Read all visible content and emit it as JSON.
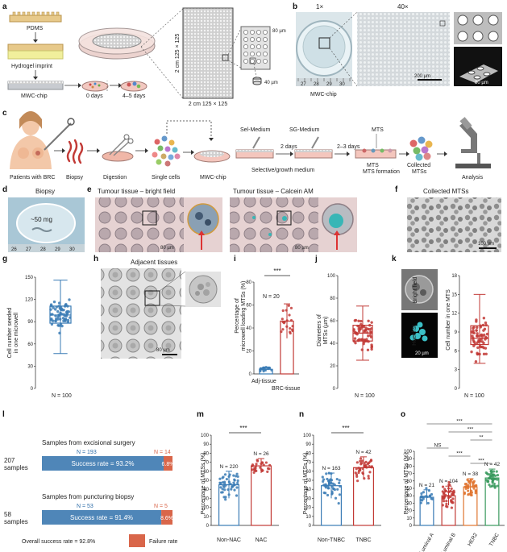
{
  "figure_type": "multi-panel scientific figure",
  "colors": {
    "blue": "#3a7bb5",
    "red": "#c23a36",
    "orange": "#e0742f",
    "green": "#3a9a5e",
    "success_bar": "#4f86b8",
    "failure_bar": "#d9664a",
    "teal": "#38b6b6"
  },
  "panels": {
    "a": {
      "label": "a",
      "pdms": "PDMS",
      "imprint": "Hydrogel imprint",
      "chip": "MWC-chip",
      "day0": "0 days",
      "day45": "4–5 days",
      "grid_side": "2 cm 125 × 125",
      "grid_bottom": "2 cm 125 × 125",
      "dim80": "80 µm",
      "dim40": "40 µm"
    },
    "b": {
      "label": "b",
      "mag1": "1×",
      "mag40": "40×",
      "caption": "MWC-chip",
      "ruler": [
        "27",
        "28",
        "29",
        "30"
      ],
      "scale1": "200 µm",
      "scale2": "80 µm"
    },
    "c": {
      "label": "c",
      "patients": "Patients with BRC",
      "steps": [
        "Biopsy",
        "Digestion",
        "Single cells",
        "MWC-chip",
        "Selective/growth medium",
        "MTS formation",
        "Collected MTSs",
        "Analysis"
      ],
      "sel_medium": "Sel-Medium",
      "sg_medium": "SG-Medium",
      "days2": "2 days",
      "days23": "2–3 days",
      "mts": "MTS"
    },
    "d": {
      "label": "d",
      "title": "Biopsy",
      "mass": "~50 mg",
      "ruler": [
        "26",
        "27",
        "28",
        "29",
        "30"
      ]
    },
    "e": {
      "label": "e",
      "title1": "Tumour tissue – bright field",
      "title2": "Tumour tissue – Calcein AM",
      "scale": "80 µm"
    },
    "f": {
      "label": "f",
      "title": "Collected MTSs",
      "scale": "100 µm"
    },
    "g": {
      "label": "g",
      "ylabel1": "Cell number seeded",
      "ylabel2": "in one microwell",
      "n": "N = 100"
    },
    "h": {
      "label": "h",
      "title": "Adjacent tissues",
      "scale": "80 µm"
    },
    "i": {
      "label": "i",
      "ylabel1": "Percentage of",
      "ylabel2": "microwell loading MTSs (%)",
      "n": "N = 20",
      "sig": "***",
      "x1": "Adj-tissue",
      "x2": "BRC-tissue"
    },
    "j": {
      "label": "j",
      "ylabel1": "Diameters of",
      "ylabel2": "MTSs (µm)",
      "n": "N = 100"
    },
    "k": {
      "label": "k",
      "bf": "Bright field",
      "hoechst": "Hoechst",
      "scale": "20 µm",
      "ylabel": "Cell number in one MTS",
      "n": "N = 100"
    },
    "l": {
      "label": "l",
      "title1": "Samples from excisional surgery",
      "samples1": "207",
      "n1s": "N = 193",
      "n1f": "N = 14",
      "rate1s": "Success rate = 93.2%",
      "rate1f": "6.8%",
      "title2": "Samples from puncturing biopsy",
      "samples2": "58",
      "n2s": "N = 53",
      "n2f": "N = 5",
      "rate2s": "Success rate = 91.4%",
      "rate2f": "8.6%",
      "samples_word": "samples",
      "overall": "Overall success rate = 92.8%",
      "failure": "Failure rate"
    },
    "m": {
      "label": "m",
      "ylabel": "Percentage of MTSs (%)",
      "x1": "Non-NAC",
      "x2": "NAC",
      "n1": "N = 220",
      "n2": "N = 26",
      "sig": "***"
    },
    "n": {
      "label": "n",
      "ylabel": "Percentage of MTSs (%)",
      "x1": "Non-TNBC",
      "x2": "TNBC",
      "n1": "N = 163",
      "n2": "N = 42",
      "sig": "***"
    },
    "o": {
      "label": "o",
      "ylabel": "Percentage of MTSs (%)",
      "groups": [
        "Luminal A",
        "Luminal B",
        "HER2",
        "TNBC"
      ],
      "her2_sup": "+",
      "ns": [
        "N = 21",
        "N = 104",
        "N = 38",
        "N = 42"
      ],
      "sig": [
        "***",
        "***",
        "**",
        "NS",
        "***",
        "***"
      ]
    }
  },
  "chart_data": [
    {
      "type": "box",
      "panel": "g",
      "ylim": [
        0,
        150
      ],
      "yticks": [
        0,
        30,
        60,
        90,
        120,
        150
      ],
      "ylabel": "Cell number seeded in one microwell",
      "series": [
        {
          "min": 47,
          "q1": 88,
          "median": 99,
          "q3": 111,
          "max": 146,
          "n": 100
        }
      ]
    },
    {
      "type": "bar",
      "panel": "i",
      "ylim": [
        0,
        80
      ],
      "yticks": [
        0,
        20,
        40,
        60,
        80
      ],
      "ylabel": "Percentage of microwell loading MTSs (%)",
      "categories": [
        "Adj-tissue",
        "BRC-tissue"
      ],
      "values": [
        4,
        46
      ],
      "errors": [
        2,
        15
      ]
    },
    {
      "type": "box",
      "panel": "j",
      "ylim": [
        0,
        100
      ],
      "yticks": [
        0,
        20,
        40,
        60,
        80,
        100
      ],
      "ylabel": "Diameters of MTSs (µm)",
      "series": [
        {
          "min": 25,
          "q1": 42,
          "median": 49,
          "q3": 56,
          "max": 73,
          "n": 100
        }
      ]
    },
    {
      "type": "box",
      "panel": "k",
      "ylim": [
        0,
        18
      ],
      "yticks": [
        0,
        3,
        6,
        9,
        12,
        15,
        18
      ],
      "ylabel": "Cell number in one MTS",
      "series": [
        {
          "min": 4,
          "q1": 7,
          "median": 8,
          "q3": 10,
          "max": 15,
          "n": 100
        }
      ]
    },
    {
      "type": "stacked-bar",
      "panel": "l",
      "categories": [
        "Samples from excisional surgery",
        "Samples from puncturing biopsy"
      ],
      "series": [
        {
          "name": "Success rate",
          "values": [
            93.2,
            91.4
          ]
        },
        {
          "name": "Failure rate",
          "values": [
            6.8,
            8.6
          ]
        }
      ]
    },
    {
      "type": "bar",
      "panel": "m",
      "ylim": [
        0,
        100
      ],
      "yticks": [
        0,
        10,
        20,
        30,
        40,
        50,
        60,
        70,
        80,
        90,
        100
      ],
      "ylabel": "Percentage of MTSs (%)",
      "categories": [
        "Non-NAC",
        "NAC"
      ],
      "values": [
        45,
        66
      ],
      "errors": [
        15,
        8
      ],
      "n": [
        220,
        26
      ]
    },
    {
      "type": "bar",
      "panel": "n",
      "ylim": [
        0,
        100
      ],
      "yticks": [
        0,
        10,
        20,
        30,
        40,
        50,
        60,
        70,
        80,
        90,
        100
      ],
      "ylabel": "Percentage of MTSs (%)",
      "categories": [
        "Non-TNBC",
        "TNBC"
      ],
      "values": [
        44,
        64
      ],
      "errors": [
        14,
        12
      ],
      "n": [
        163,
        42
      ]
    },
    {
      "type": "bar",
      "panel": "o",
      "ylim": [
        0,
        100
      ],
      "yticks": [
        0,
        10,
        20,
        30,
        40,
        50,
        60,
        70,
        80,
        90,
        100
      ],
      "ylabel": "Percentage of MTSs (%)",
      "categories": [
        "Luminal A",
        "Luminal B",
        "HER2+",
        "TNBC"
      ],
      "values": [
        38,
        40,
        52,
        64
      ],
      "errors": [
        10,
        13,
        11,
        12
      ],
      "n": [
        21,
        104,
        38,
        42
      ]
    }
  ]
}
